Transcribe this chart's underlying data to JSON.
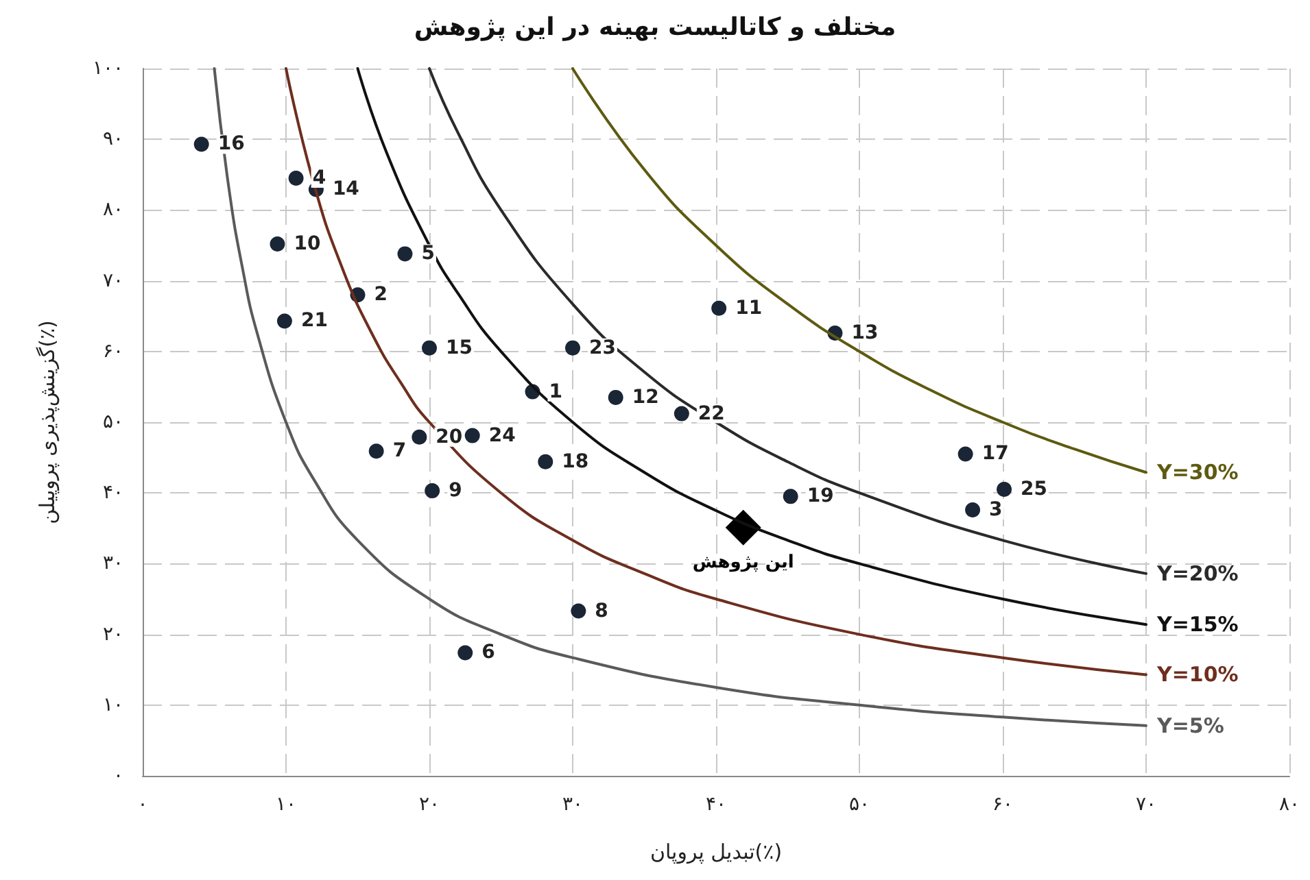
{
  "chart_data": {
    "type": "scatter",
    "title": "مختلف و کاتالیست بهینه در این پژوهش",
    "xlabel": "تبدیل پروپان(٪)",
    "ylabel": "گزینش‌پذیری پروپیلن(٪)",
    "xlim": [
      0,
      80
    ],
    "ylim": [
      0,
      100
    ],
    "xticks": [
      {
        "value": 0,
        "label": "۰"
      },
      {
        "value": 10,
        "label": "۱۰"
      },
      {
        "value": 20,
        "label": "۲۰"
      },
      {
        "value": 30,
        "label": "۳۰"
      },
      {
        "value": 40,
        "label": "۴۰"
      },
      {
        "value": 50,
        "label": "۵۰"
      },
      {
        "value": 60,
        "label": "۶۰"
      },
      {
        "value": 70,
        "label": "۷۰"
      },
      {
        "value": 80,
        "label": "۸۰"
      }
    ],
    "yticks": [
      {
        "value": 0,
        "label": "۰"
      },
      {
        "value": 10,
        "label": "۱۰"
      },
      {
        "value": 20,
        "label": "۲۰"
      },
      {
        "value": 30,
        "label": "۳۰"
      },
      {
        "value": 40,
        "label": "۴۰"
      },
      {
        "value": 50,
        "label": "۵۰"
      },
      {
        "value": 60,
        "label": "۶۰"
      },
      {
        "value": 70,
        "label": "۷۰"
      },
      {
        "value": 80,
        "label": "۸۰"
      },
      {
        "value": 90,
        "label": "۹۰"
      },
      {
        "value": 100,
        "label": "۱۰۰"
      }
    ],
    "grid": true,
    "legend": false,
    "annotations": [
      {
        "text": "1",
        "x": 27.2,
        "y": 54.3
      },
      {
        "text": "2",
        "x": 15.0,
        "y": 68.0
      },
      {
        "text": "3",
        "x": 57.9,
        "y": 37.6
      },
      {
        "text": "4",
        "x": 10.7,
        "y": 84.5
      },
      {
        "text": "5",
        "x": 18.3,
        "y": 73.8
      },
      {
        "text": "6",
        "x": 22.5,
        "y": 17.4
      },
      {
        "text": "7",
        "x": 16.3,
        "y": 45.9
      },
      {
        "text": "8",
        "x": 30.4,
        "y": 23.3
      },
      {
        "text": "9",
        "x": 20.2,
        "y": 40.3
      },
      {
        "text": "10",
        "x": 9.4,
        "y": 75.2
      },
      {
        "text": "11",
        "x": 40.2,
        "y": 66.1
      },
      {
        "text": "12",
        "x": 33.0,
        "y": 53.5
      },
      {
        "text": "13",
        "x": 48.3,
        "y": 62.6
      },
      {
        "text": "14",
        "x": 12.1,
        "y": 82.9
      },
      {
        "text": "15",
        "x": 20.0,
        "y": 60.5
      },
      {
        "text": "16",
        "x": 4.1,
        "y": 89.3
      },
      {
        "text": "17",
        "x": 57.4,
        "y": 45.5
      },
      {
        "text": "18",
        "x": 28.1,
        "y": 44.4
      },
      {
        "text": "19",
        "x": 45.2,
        "y": 39.5
      },
      {
        "text": "20",
        "x": 19.3,
        "y": 47.9
      },
      {
        "text": "21",
        "x": 9.9,
        "y": 64.3
      },
      {
        "text": "22",
        "x": 37.6,
        "y": 51.2
      },
      {
        "text": "23",
        "x": 30.0,
        "y": 60.5
      },
      {
        "text": "24",
        "x": 23.0,
        "y": 48.1
      },
      {
        "text": "25",
        "x": 60.1,
        "y": 40.5
      }
    ],
    "series": [
      {
        "type": "line",
        "name": "Y=5%",
        "color": "#5a5a5a",
        "marker": "none",
        "x": [
          5,
          6,
          7,
          8,
          10,
          12,
          15,
          20,
          25,
          30,
          40,
          50,
          60,
          70
        ],
        "values": [
          100,
          83.3,
          71.4,
          62.5,
          50,
          41.7,
          33.3,
          25,
          20,
          16.7,
          12.5,
          10,
          8.3,
          7.1
        ]
      },
      {
        "type": "line",
        "name": "Y=10%",
        "color": "#6e2e1e",
        "marker": "none",
        "x": [
          10,
          12,
          14,
          16,
          18,
          20,
          25,
          30,
          35,
          40,
          50,
          60,
          70
        ],
        "values": [
          100,
          83.3,
          71.4,
          62.5,
          55.6,
          50,
          40,
          33.3,
          28.6,
          25,
          20,
          16.7,
          14.3
        ]
      },
      {
        "type": "line",
        "name": "Y=15%",
        "color": "#111111",
        "marker": "none",
        "x": [
          15,
          17,
          20,
          22,
          25,
          30,
          35,
          40,
          45,
          50,
          60,
          70
        ],
        "values": [
          100,
          88.2,
          75,
          68.2,
          60,
          50,
          42.9,
          37.5,
          33.3,
          30,
          25,
          21.4
        ]
      },
      {
        "type": "line",
        "name": "Y=20%",
        "color": "#2a2a2a",
        "marker": "none",
        "x": [
          20,
          22,
          25,
          30,
          35,
          40,
          45,
          50,
          60,
          70
        ],
        "values": [
          100,
          90.9,
          80,
          66.7,
          57.1,
          50,
          44.4,
          40,
          33.3,
          28.6
        ]
      },
      {
        "type": "line",
        "name": "Y=30%",
        "color": "#5e5a10",
        "marker": "none",
        "x": [
          30,
          35,
          40,
          45,
          50,
          55,
          60,
          65,
          70
        ],
        "values": [
          100,
          85.7,
          75,
          66.7,
          60,
          54.5,
          50,
          46.2,
          42.9
        ]
      },
      {
        "type": "scatter",
        "color": "#1a2535",
        "marker": "circle",
        "x": [
          27.2,
          15.0,
          57.9,
          10.7,
          18.3,
          22.5,
          16.3,
          30.4,
          20.2,
          9.4,
          40.2,
          33.0,
          48.3,
          12.1,
          20.0,
          4.1,
          57.4,
          28.1,
          45.2,
          19.3,
          9.9,
          37.6,
          30.0,
          23.0,
          60.1
        ],
        "values": [
          54.3,
          68.0,
          37.6,
          84.5,
          73.8,
          17.4,
          45.9,
          23.3,
          40.3,
          75.2,
          66.1,
          53.5,
          62.6,
          82.9,
          60.5,
          89.3,
          45.5,
          44.4,
          39.5,
          47.9,
          64.3,
          51.2,
          60.5,
          48.1,
          40.5
        ]
      },
      {
        "type": "scatter",
        "name": "این پژوهش",
        "color": "#000000",
        "marker": "diamond",
        "x": [
          41.9
        ],
        "values": [
          35.1
        ]
      }
    ]
  }
}
